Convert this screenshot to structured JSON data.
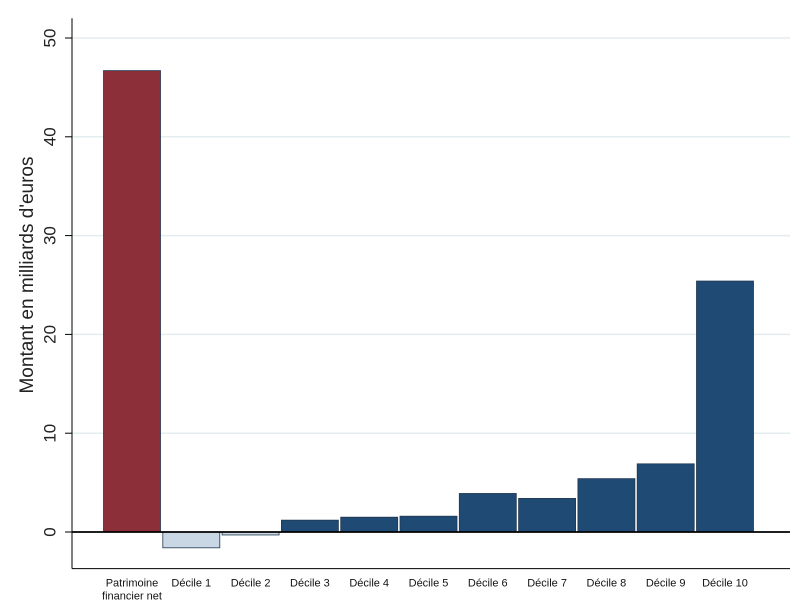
{
  "chart_data": {
    "type": "bar",
    "title": "",
    "xlabel": "",
    "ylabel": "Montant en milliards d'euros",
    "ylim": [
      -3.5,
      52
    ],
    "yticks": [
      0,
      10,
      20,
      30,
      40,
      50
    ],
    "ytick_labels": [
      "0",
      "10",
      "20",
      "30",
      "40",
      "50"
    ],
    "grid": true,
    "categories": [
      [
        "Patrimoine",
        "financier net"
      ],
      [
        "Décile 1"
      ],
      [
        "Décile 2"
      ],
      [
        "Décile 3"
      ],
      [
        "Décile 4"
      ],
      [
        "Décile 5"
      ],
      [
        "Décile 6"
      ],
      [
        "Décile 7"
      ],
      [
        "Décile 8"
      ],
      [
        "Décile 9"
      ],
      [
        "Décile 10"
      ]
    ],
    "values": [
      46.7,
      -1.6,
      -0.3,
      1.2,
      1.5,
      1.6,
      3.9,
      3.4,
      5.4,
      6.9,
      25.4
    ],
    "bar_colors": [
      "#8c2f39",
      "#c9d6e3",
      "#c9d6e3",
      "#1f4a74",
      "#1f4a74",
      "#1f4a74",
      "#1f4a74",
      "#1f4a74",
      "#1f4a74",
      "#1f4a74",
      "#1f4a74"
    ],
    "colors": {
      "total": "#8c2f39",
      "negative": "#c9d6e3",
      "positive": "#1f4a74",
      "grid": "#e3ecef",
      "axis": "#000000"
    }
  }
}
